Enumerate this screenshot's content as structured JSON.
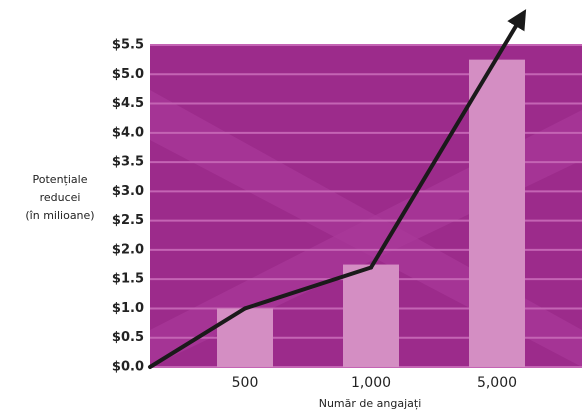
{
  "chart_data": {
    "type": "bar",
    "categories": [
      "500",
      "1,000",
      "5,000"
    ],
    "values": [
      1.0,
      1.75,
      5.25
    ],
    "color": "#d48ec3",
    "line": {
      "values": [
        1.0,
        1.7,
        null
      ],
      "color": "#1a1a1a"
    },
    "ylabel": [
      "Potențiale",
      "reducei",
      "(în milioane)"
    ],
    "xlabel": "Număr de angajați",
    "ylim": [
      0,
      5.5
    ],
    "yticks": [
      {
        "value": 0,
        "label": "$0.0"
      },
      {
        "value": 0.5,
        "label": "$0.5"
      },
      {
        "value": 1,
        "label": "$1.0"
      },
      {
        "value": 1.5,
        "label": "$1.5"
      },
      {
        "value": 2,
        "label": "$2.0"
      },
      {
        "value": 2.5,
        "label": "$2.5"
      },
      {
        "value": 3,
        "label": "$3.0"
      },
      {
        "value": 3.5,
        "label": "$3.5"
      },
      {
        "value": 4,
        "label": "$4.0"
      },
      {
        "value": 4.5,
        "label": "$4.5"
      },
      {
        "value": 5,
        "label": "$5.0"
      },
      {
        "value": 5.5,
        "label": "$5.5"
      }
    ],
    "grid": true
  }
}
